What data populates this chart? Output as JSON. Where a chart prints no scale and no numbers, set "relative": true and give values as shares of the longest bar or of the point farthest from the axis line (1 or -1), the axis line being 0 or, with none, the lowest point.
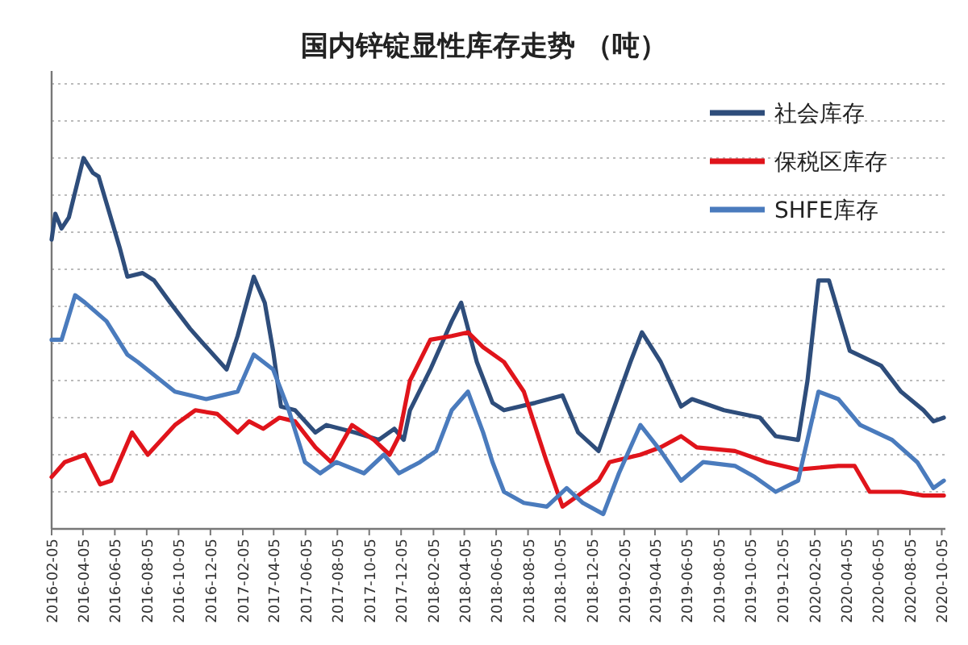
{
  "chart_data": {
    "type": "line",
    "title": "国内锌锭显性库存走势  （吨）",
    "relative": true,
    "grid": "y",
    "legend": "top right",
    "xlim": [
      "2016-02-05",
      "2020-10-12"
    ],
    "xticks": [
      "2016-02-05",
      "2016-04-05",
      "2016-06-05",
      "2016-08-05",
      "2016-10-05",
      "2016-12-05",
      "2017-02-05",
      "2017-04-05",
      "2017-06-05",
      "2017-08-05",
      "2017-10-05",
      "2017-12-05",
      "2018-02-05",
      "2018-04-05",
      "2018-06-05",
      "2018-08-05",
      "2018-10-05",
      "2018-12-05",
      "2019-02-05",
      "2019-04-05",
      "2019-06-05",
      "2019-08-05",
      "2019-10-05",
      "2019-12-05",
      "2020-02-05",
      "2020-04-05",
      "2020-06-05",
      "2020-08-05",
      "2020-10-05"
    ],
    "series": [
      {
        "name": "社会库存",
        "color": "#2e4d7b",
        "x": [
          "2016-02-05",
          "2016-02-12",
          "2016-02-24",
          "2016-03-09",
          "2016-04-06",
          "2016-04-24",
          "2016-05-05",
          "2016-06-14",
          "2016-06-29",
          "2016-07-28",
          "2016-08-19",
          "2016-09-19",
          "2016-10-27",
          "2016-11-21",
          "2017-01-05",
          "2017-01-26",
          "2017-02-26",
          "2017-03-19",
          "2017-04-04",
          "2017-04-19",
          "2017-05-16",
          "2017-06-24",
          "2017-07-15",
          "2017-09-08",
          "2017-10-23",
          "2017-11-22",
          "2017-12-10",
          "2017-12-22",
          "2018-01-30",
          "2018-03-12",
          "2018-03-30",
          "2018-04-29",
          "2018-05-29",
          "2018-06-20",
          "2018-08-19",
          "2018-10-10",
          "2018-11-09",
          "2018-12-18",
          "2019-02-17",
          "2019-03-11",
          "2019-04-16",
          "2019-05-25",
          "2019-06-15",
          "2019-08-15",
          "2019-10-23",
          "2019-11-22",
          "2020-01-04",
          "2020-01-22",
          "2020-02-12",
          "2020-03-03",
          "2020-04-12",
          "2020-06-11",
          "2020-07-19",
          "2020-08-31",
          "2020-09-19",
          "2020-10-09"
        ],
        "values": [
          0.78,
          0.85,
          0.81,
          0.84,
          1,
          0.96,
          0.95,
          0.76,
          0.68,
          0.69,
          0.67,
          0.61,
          0.54,
          0.5,
          0.43,
          0.52,
          0.68,
          0.61,
          0.48,
          0.33,
          0.32,
          0.26,
          0.28,
          0.26,
          0.24,
          0.27,
          0.24,
          0.32,
          0.43,
          0.56,
          0.61,
          0.45,
          0.34,
          0.32,
          0.34,
          0.36,
          0.26,
          0.21,
          0.45,
          0.53,
          0.45,
          0.33,
          0.35,
          0.32,
          0.3,
          0.25,
          0.24,
          0.4,
          0.67,
          0.67,
          0.48,
          0.44,
          0.37,
          0.32,
          0.29,
          0.3
        ]
      },
      {
        "name": "保税区库存",
        "color": "#e0141b",
        "x": [
          "2016-02-05",
          "2016-03-01",
          "2016-04-09",
          "2016-05-08",
          "2016-05-29",
          "2016-07-08",
          "2016-08-07",
          "2016-09-28",
          "2016-11-06",
          "2016-12-18",
          "2017-01-26",
          "2017-02-17",
          "2017-03-16",
          "2017-04-16",
          "2017-05-16",
          "2017-06-24",
          "2017-07-24",
          "2017-09-02",
          "2017-10-14",
          "2017-11-13",
          "2017-12-01",
          "2017-12-22",
          "2018-01-30",
          "2018-03-12",
          "2018-04-12",
          "2018-05-11",
          "2018-06-20",
          "2018-07-28",
          "2018-09-10",
          "2018-10-10",
          "2018-11-09",
          "2018-12-18",
          "2019-01-08",
          "2019-03-08",
          "2019-04-16",
          "2019-05-25",
          "2019-06-24",
          "2019-09-05",
          "2019-11-05",
          "2020-01-04",
          "2020-03-21",
          "2020-04-21",
          "2020-05-20",
          "2020-07-19",
          "2020-08-31",
          "2020-10-09"
        ],
        "values": [
          0.14,
          0.18,
          0.2,
          0.12,
          0.13,
          0.26,
          0.2,
          0.28,
          0.32,
          0.31,
          0.26,
          0.29,
          0.27,
          0.3,
          0.29,
          0.22,
          0.18,
          0.28,
          0.24,
          0.2,
          0.25,
          0.4,
          0.51,
          0.52,
          0.53,
          0.49,
          0.45,
          0.37,
          0.18,
          0.06,
          0.09,
          0.13,
          0.18,
          0.2,
          0.22,
          0.25,
          0.22,
          0.21,
          0.18,
          0.16,
          0.17,
          0.17,
          0.1,
          0.1,
          0.09,
          0.09
        ]
      },
      {
        "name": "SHFE库存",
        "color": "#4a7bbd",
        "x": [
          "2016-02-05",
          "2016-02-24",
          "2016-03-21",
          "2016-04-09",
          "2016-05-20",
          "2016-06-29",
          "2016-07-19",
          "2016-09-28",
          "2016-11-27",
          "2016-12-27",
          "2017-01-26",
          "2017-02-26",
          "2017-04-04",
          "2017-05-04",
          "2017-06-04",
          "2017-07-03",
          "2017-08-03",
          "2017-09-25",
          "2017-11-02",
          "2017-12-01",
          "2018-01-10",
          "2018-02-10",
          "2018-03-12",
          "2018-04-12",
          "2018-05-11",
          "2018-05-29",
          "2018-06-20",
          "2018-07-28",
          "2018-09-10",
          "2018-10-18",
          "2018-11-18",
          "2018-12-27",
          "2019-01-26",
          "2019-03-08",
          "2019-04-16",
          "2019-05-25",
          "2019-07-06",
          "2019-09-05",
          "2019-10-13",
          "2019-11-22",
          "2020-01-04",
          "2020-02-12",
          "2020-03-21",
          "2020-05-02",
          "2020-07-02",
          "2020-08-19",
          "2020-09-19",
          "2020-10-09"
        ],
        "values": [
          0.51,
          0.51,
          0.63,
          0.61,
          0.56,
          0.47,
          0.45,
          0.37,
          0.35,
          0.36,
          0.37,
          0.47,
          0.43,
          0.32,
          0.18,
          0.15,
          0.18,
          0.15,
          0.2,
          0.15,
          0.18,
          0.21,
          0.32,
          0.37,
          0.26,
          0.18,
          0.1,
          0.07,
          0.06,
          0.11,
          0.07,
          0.04,
          0.15,
          0.28,
          0.21,
          0.13,
          0.18,
          0.17,
          0.14,
          0.1,
          0.13,
          0.37,
          0.35,
          0.28,
          0.24,
          0.18,
          0.11,
          0.13
        ]
      }
    ]
  }
}
